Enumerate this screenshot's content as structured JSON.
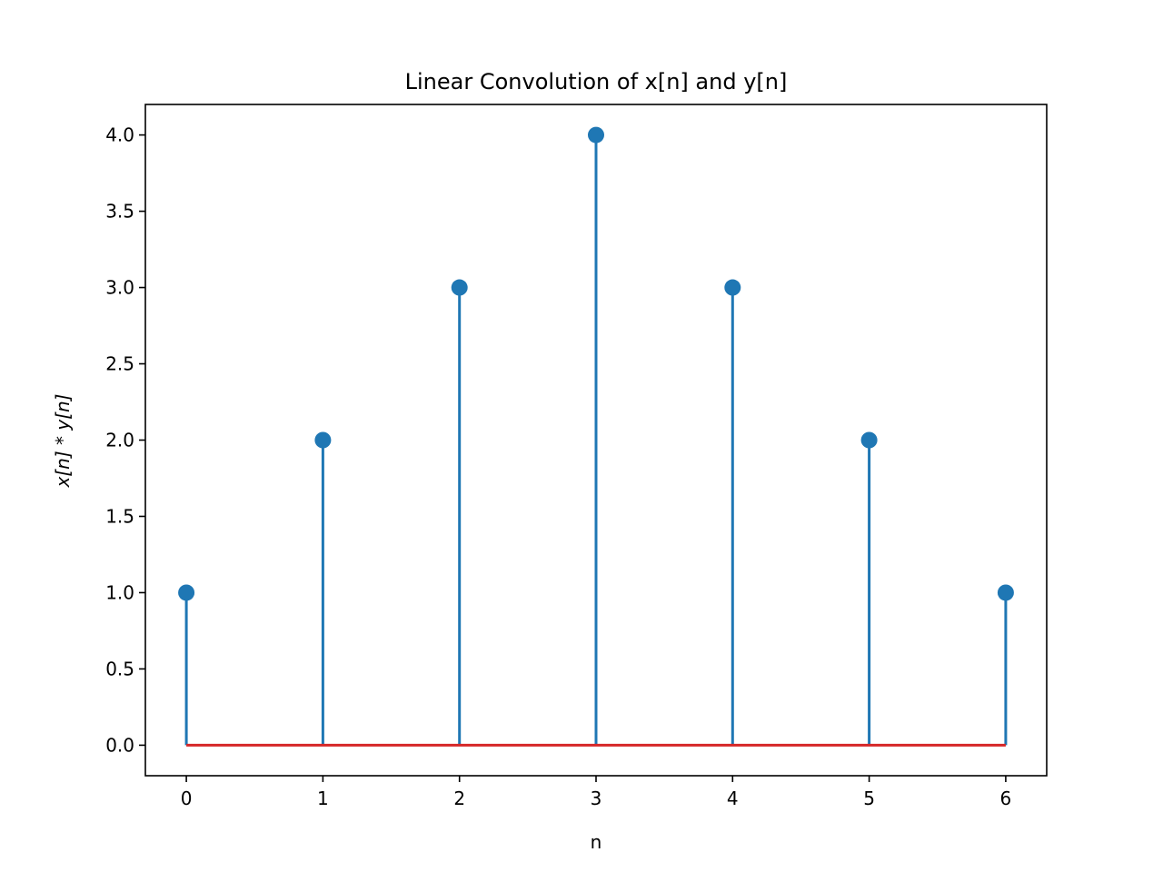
{
  "chart_data": {
    "type": "stem",
    "title": "Linear Convolution of x[n] and y[n]",
    "xlabel": "n",
    "ylabel": "x[n] * y[n]",
    "x": [
      0,
      1,
      2,
      3,
      4,
      5,
      6
    ],
    "values": [
      1,
      2,
      3,
      4,
      3,
      2,
      1
    ],
    "xlim": [
      -0.3,
      6.3
    ],
    "ylim": [
      -0.2,
      4.2
    ],
    "xticks": [
      "0",
      "1",
      "2",
      "3",
      "4",
      "5",
      "6"
    ],
    "yticks": [
      "0.0",
      "0.5",
      "1.0",
      "1.5",
      "2.0",
      "2.5",
      "3.0",
      "3.5",
      "4.0"
    ],
    "ytick_values": [
      0,
      0.5,
      1,
      1.5,
      2,
      2.5,
      3,
      3.5,
      4
    ],
    "grid": false,
    "colors": {
      "stem": "#1f77b4",
      "baseline": "#d62728",
      "axes": "#000000"
    }
  }
}
